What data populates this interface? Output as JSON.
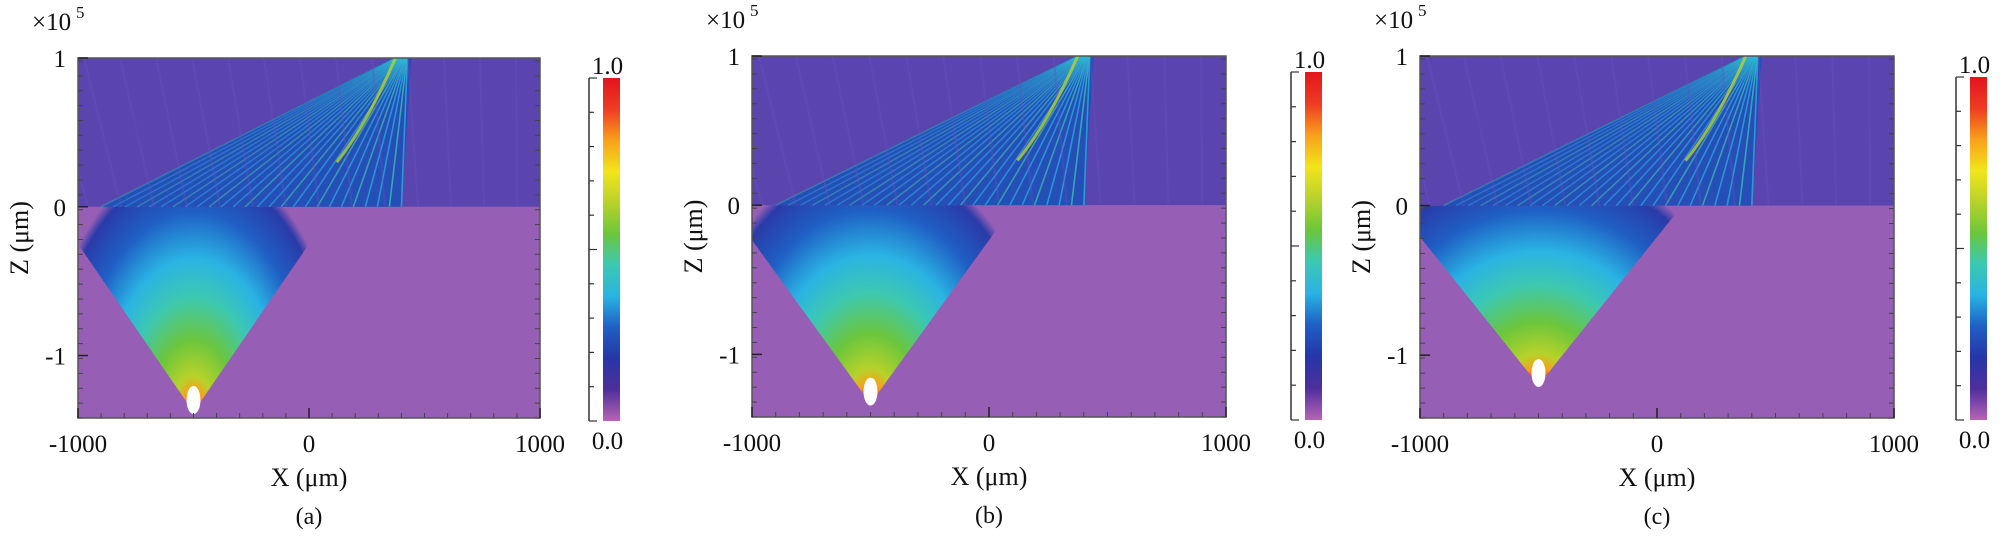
{
  "colors": {
    "bg_magenta": "#b565b6",
    "scale": [
      "#b565b6",
      "#4f2f9b",
      "#2636a8",
      "#1f5fc4",
      "#2ab3e3",
      "#3cc8b2",
      "#6cc63c",
      "#b7d22a",
      "#f2e51a",
      "#f7a11b",
      "#ef3b24",
      "#e3141c"
    ]
  },
  "chart_data": [
    {
      "type": "heatmap",
      "caption": "(a)",
      "xlabel": "X (μm)",
      "ylabel": "Z (μm)",
      "y_multiplier": "×10",
      "y_multiplier_exp": "5",
      "xlim": [
        -1000,
        1000
      ],
      "ylim": [
        -1.42,
        1.0
      ],
      "xticks": [
        -1000,
        0,
        1000
      ],
      "yticks": [
        -1,
        0,
        1
      ],
      "colorbar": {
        "min_label": "0.0",
        "max_label": "1.0",
        "range": [
          0.0,
          1.0
        ]
      },
      "source": {
        "x": -500,
        "z": -1.38
      },
      "interface_z": 0,
      "beam_target": {
        "x": 400,
        "z": 1.0
      },
      "beam_spread": "narrow"
    },
    {
      "type": "heatmap",
      "caption": "(b)",
      "xlabel": "X (μm)",
      "ylabel": "Z (μm)",
      "y_multiplier": "×10",
      "y_multiplier_exp": "5",
      "xlim": [
        -1000,
        1000
      ],
      "ylim": [
        -1.42,
        1.0
      ],
      "xticks": [
        -1000,
        0,
        1000
      ],
      "yticks": [
        -1,
        0,
        1
      ],
      "colorbar": {
        "min_label": "0.0",
        "max_label": "1.0",
        "range": [
          0.0,
          1.0
        ]
      },
      "source": {
        "x": -500,
        "z": -1.33
      },
      "interface_z": 0,
      "beam_target": {
        "x": 400,
        "z": 1.0
      },
      "beam_spread": "medium"
    },
    {
      "type": "heatmap",
      "caption": "(c)",
      "xlabel": "X (μm)",
      "ylabel": "Z (μm)",
      "y_multiplier": "×10",
      "y_multiplier_exp": "5",
      "xlim": [
        -1000,
        1000
      ],
      "ylim": [
        -1.42,
        1.0
      ],
      "xticks": [
        -1000,
        0,
        1000
      ],
      "yticks": [
        -1,
        0,
        1
      ],
      "colorbar": {
        "min_label": "0.0",
        "max_label": "1.0",
        "range": [
          0.0,
          1.0
        ]
      },
      "source": {
        "x": -500,
        "z": -1.2
      },
      "interface_z": 0,
      "beam_target": {
        "x": 400,
        "z": 1.0
      },
      "beam_spread": "wide"
    }
  ]
}
